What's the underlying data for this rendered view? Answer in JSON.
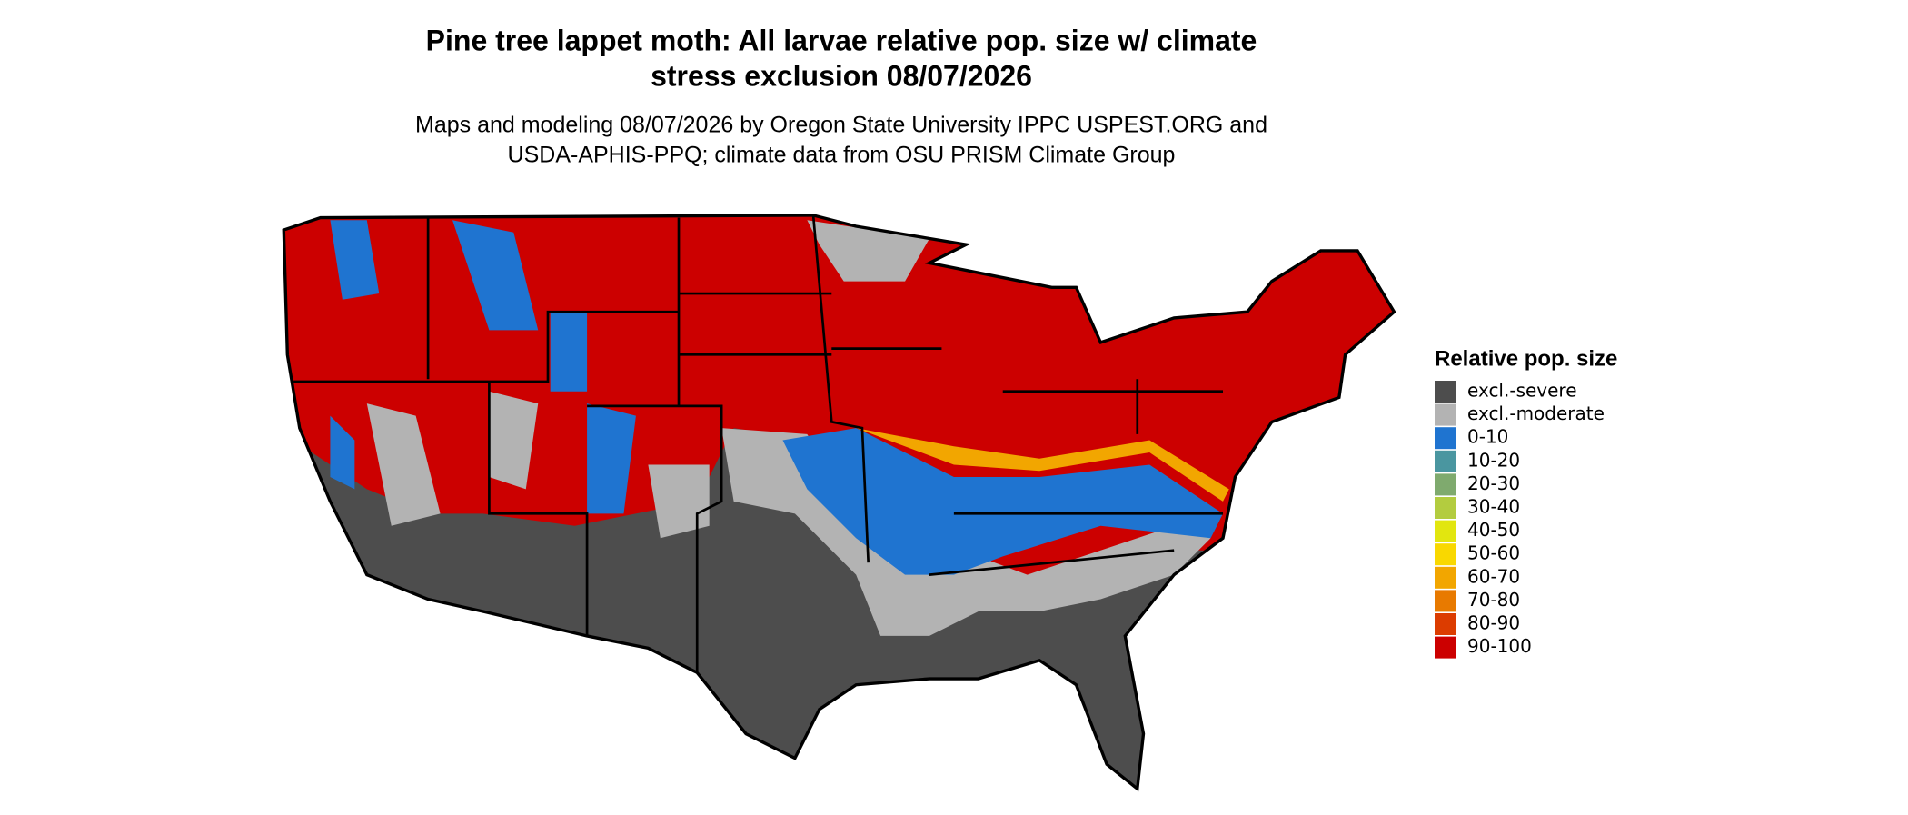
{
  "title_lines": [
    "Pine tree lappet moth: All larvae relative pop. size w/ climate",
    "stress exclusion 08/07/2026"
  ],
  "subtitle_lines": [
    "Maps and modeling 08/07/2026 by Oregon State University IPPC USPEST.ORG and",
    "USDA-APHIS-PPQ; climate data from OSU PRISM Climate Group"
  ],
  "legend": {
    "title": "Relative pop. size",
    "items": [
      {
        "label": "excl.-severe",
        "color": "#4d4d4d"
      },
      {
        "label": "excl.-moderate",
        "color": "#b3b3b3"
      },
      {
        "label": "0-10",
        "color": "#1f74d0"
      },
      {
        "label": "10-20",
        "color": "#4a96a0"
      },
      {
        "label": "20-30",
        "color": "#7faa6e"
      },
      {
        "label": "30-40",
        "color": "#b3cc3f"
      },
      {
        "label": "40-50",
        "color": "#e2e60f"
      },
      {
        "label": "50-60",
        "color": "#f9d800"
      },
      {
        "label": "60-70",
        "color": "#f2a600"
      },
      {
        "label": "70-80",
        "color": "#e87a00"
      },
      {
        "label": "80-90",
        "color": "#dc3c00"
      },
      {
        "label": "90-100",
        "color": "#cc0000"
      }
    ]
  }
}
